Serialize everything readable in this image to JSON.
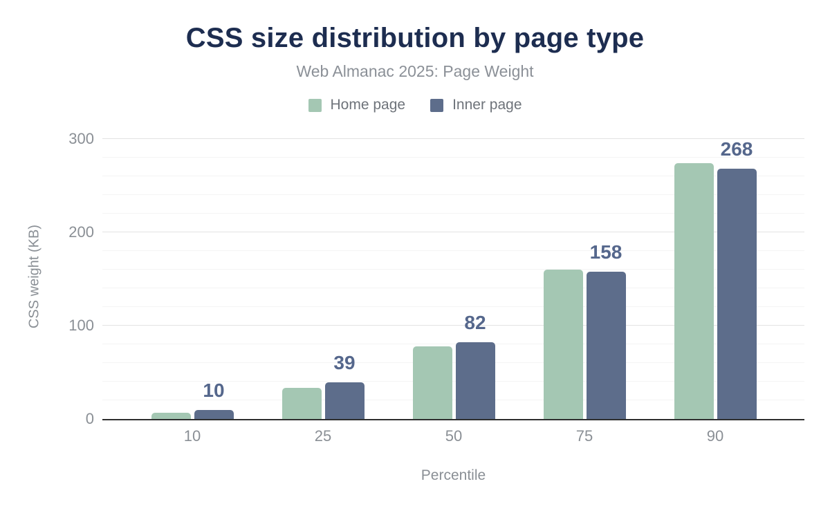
{
  "header": {
    "title": "CSS size distribution by page type",
    "subtitle": "Web Almanac 2025: Page Weight"
  },
  "chart_data": {
    "type": "bar",
    "title": "CSS size distribution by page type",
    "subtitle": "Web Almanac 2025: Page Weight",
    "categories": [
      "10",
      "25",
      "50",
      "75",
      "90"
    ],
    "series": [
      {
        "name": "Home page",
        "color": "#a4c7b3",
        "values": [
          7,
          33,
          78,
          160,
          274
        ]
      },
      {
        "name": "Inner page",
        "color": "#5d6d8b",
        "values": [
          10,
          39,
          82,
          158,
          268
        ]
      }
    ],
    "data_labels": {
      "series": "Inner page",
      "values": [
        "10",
        "39",
        "82",
        "158",
        "268"
      ]
    },
    "xlabel": "Percentile",
    "ylabel": "CSS weight (KB)",
    "ylim": [
      0,
      312
    ],
    "yticks": [
      0,
      100,
      200,
      300
    ],
    "grid": {
      "minor_step": 20,
      "major_step": 100,
      "max": 300
    },
    "legend_position": "top",
    "colors": {
      "title": "#1d2d50",
      "subtitle": "#8b9097",
      "axis_text": "#8a8f95",
      "data_label": "#55678c",
      "axis_line": "#2e2e2e",
      "background": "#ffffff"
    }
  }
}
